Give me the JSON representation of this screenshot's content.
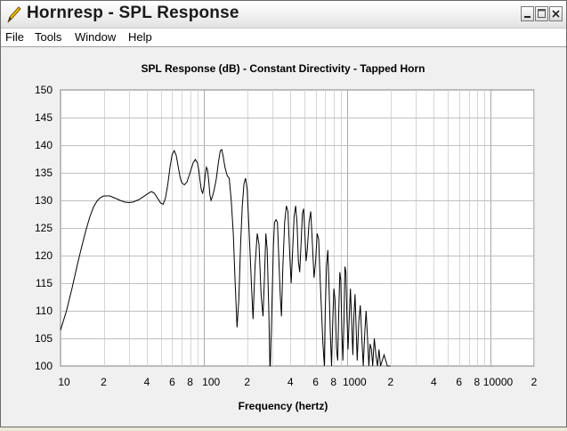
{
  "window": {
    "title": "Hornresp - SPL Response"
  },
  "menu": {
    "items": [
      "File",
      "Tools",
      "Window",
      "Help"
    ]
  },
  "colors": {
    "plot_bg": "#FFFFFF",
    "grid": "#C0C0C0",
    "trace": "#000000",
    "client_bg": "#F0F0F0"
  },
  "chart_data": {
    "type": "line",
    "title": "SPL Response (dB) - Constant Directivity - Tapped Horn",
    "xlabel": "Frequency (hertz)",
    "ylabel": "",
    "x_scale": "log",
    "xlim": [
      10,
      20000
    ],
    "ylim": [
      100,
      150
    ],
    "grid": true,
    "y_ticks": [
      100,
      105,
      110,
      115,
      120,
      125,
      130,
      135,
      140,
      145,
      150
    ],
    "x_tick_labels": [
      {
        "value": 10,
        "label": "10"
      },
      {
        "value": 20,
        "label": "2"
      },
      {
        "value": 40,
        "label": "4"
      },
      {
        "value": 60,
        "label": "6"
      },
      {
        "value": 80,
        "label": "8"
      },
      {
        "value": 100,
        "label": "100"
      },
      {
        "value": 200,
        "label": "2"
      },
      {
        "value": 400,
        "label": "4"
      },
      {
        "value": 600,
        "label": "6"
      },
      {
        "value": 800,
        "label": "8"
      },
      {
        "value": 1000,
        "label": "1000"
      },
      {
        "value": 2000,
        "label": "2"
      },
      {
        "value": 4000,
        "label": "4"
      },
      {
        "value": 6000,
        "label": "6"
      },
      {
        "value": 8000,
        "label": "8"
      },
      {
        "value": 10000,
        "label": "10000"
      },
      {
        "value": 20000,
        "label": "2"
      }
    ],
    "series": [
      {
        "points": [
          [
            10,
            106.5
          ],
          [
            11,
            110
          ],
          [
            12,
            114
          ],
          [
            13,
            118
          ],
          [
            14,
            121.5
          ],
          [
            15,
            124.5
          ],
          [
            16,
            127
          ],
          [
            17,
            128.8
          ],
          [
            18,
            129.9
          ],
          [
            19,
            130.5
          ],
          [
            20,
            130.8
          ],
          [
            22,
            130.8
          ],
          [
            24,
            130.4
          ],
          [
            26,
            130
          ],
          [
            28,
            129.7
          ],
          [
            30,
            129.6
          ],
          [
            32,
            129.7
          ],
          [
            35,
            130.1
          ],
          [
            38,
            130.7
          ],
          [
            40,
            131.1
          ],
          [
            43,
            131.6
          ],
          [
            45,
            131.3
          ],
          [
            48,
            130.2
          ],
          [
            50,
            129.5
          ],
          [
            52,
            129.3
          ],
          [
            54,
            130.5
          ],
          [
            56,
            133
          ],
          [
            58,
            136
          ],
          [
            60,
            138.3
          ],
          [
            62,
            139
          ],
          [
            64,
            138.2
          ],
          [
            66,
            136.2
          ],
          [
            68,
            134.3
          ],
          [
            70,
            133.2
          ],
          [
            73,
            132.8
          ],
          [
            76,
            133.3
          ],
          [
            80,
            135
          ],
          [
            84,
            136.8
          ],
          [
            87,
            137.4
          ],
          [
            90,
            136.8
          ],
          [
            92,
            135.5
          ],
          [
            94,
            133.5
          ],
          [
            96,
            131.8
          ],
          [
            98,
            131.3
          ],
          [
            100,
            132.5
          ],
          [
            102,
            134.5
          ],
          [
            104,
            136
          ],
          [
            106,
            135.5
          ],
          [
            108,
            133.5
          ],
          [
            110,
            131
          ],
          [
            112,
            130
          ],
          [
            115,
            130.8
          ],
          [
            118,
            132
          ],
          [
            122,
            134
          ],
          [
            126,
            136.8
          ],
          [
            130,
            139
          ],
          [
            133,
            139.2
          ],
          [
            136,
            138
          ],
          [
            140,
            136
          ],
          [
            145,
            134.5
          ],
          [
            150,
            134
          ],
          [
            155,
            130
          ],
          [
            160,
            124
          ],
          [
            165,
            115
          ],
          [
            170,
            107
          ],
          [
            175,
            112
          ],
          [
            180,
            122
          ],
          [
            185,
            129
          ],
          [
            190,
            133
          ],
          [
            195,
            134
          ],
          [
            200,
            132
          ],
          [
            205,
            126
          ],
          [
            210,
            120
          ],
          [
            215,
            114
          ],
          [
            220,
            108.5
          ],
          [
            227,
            118
          ],
          [
            235,
            124
          ],
          [
            242,
            122
          ],
          [
            250,
            113
          ],
          [
            258,
            109
          ],
          [
            264,
            116
          ],
          [
            270,
            124
          ],
          [
            276,
            121
          ],
          [
            283,
            110
          ],
          [
            288,
            100
          ],
          [
            290,
            100
          ],
          [
            295,
            107
          ],
          [
            300,
            115
          ],
          [
            305,
            122
          ],
          [
            310,
            126
          ],
          [
            318,
            126.5
          ],
          [
            325,
            126
          ],
          [
            332,
            120
          ],
          [
            340,
            113
          ],
          [
            347,
            109
          ],
          [
            355,
            118
          ],
          [
            365,
            126
          ],
          [
            375,
            129
          ],
          [
            385,
            128
          ],
          [
            395,
            121
          ],
          [
            405,
            115
          ],
          [
            415,
            121
          ],
          [
            425,
            127
          ],
          [
            435,
            129
          ],
          [
            445,
            126
          ],
          [
            455,
            119
          ],
          [
            465,
            117
          ],
          [
            475,
            122
          ],
          [
            485,
            127.5
          ],
          [
            495,
            128.5
          ],
          [
            505,
            124
          ],
          [
            515,
            119
          ],
          [
            525,
            121
          ],
          [
            540,
            126
          ],
          [
            555,
            128
          ],
          [
            570,
            122
          ],
          [
            585,
            116
          ],
          [
            600,
            119
          ],
          [
            615,
            124
          ],
          [
            630,
            123
          ],
          [
            645,
            116
          ],
          [
            660,
            110
          ],
          [
            675,
            104
          ],
          [
            690,
            100
          ],
          [
            700,
            110
          ],
          [
            715,
            118
          ],
          [
            730,
            121
          ],
          [
            745,
            114
          ],
          [
            760,
            106
          ],
          [
            775,
            100
          ],
          [
            790,
            108
          ],
          [
            805,
            114
          ],
          [
            820,
            112
          ],
          [
            840,
            103
          ],
          [
            855,
            101
          ],
          [
            870,
            110
          ],
          [
            885,
            117
          ],
          [
            900,
            115.5
          ],
          [
            915,
            106
          ],
          [
            930,
            101
          ],
          [
            945,
            108
          ],
          [
            960,
            118
          ],
          [
            975,
            117
          ],
          [
            990,
            110
          ],
          [
            1010,
            103
          ],
          [
            1030,
            109
          ],
          [
            1050,
            114
          ],
          [
            1070,
            108
          ],
          [
            1090,
            102
          ],
          [
            1110,
            109
          ],
          [
            1130,
            113
          ],
          [
            1150,
            107
          ],
          [
            1170,
            101
          ],
          [
            1200,
            108
          ],
          [
            1230,
            111
          ],
          [
            1260,
            105
          ],
          [
            1290,
            100
          ],
          [
            1320,
            106
          ],
          [
            1350,
            110
          ],
          [
            1380,
            105
          ],
          [
            1410,
            100
          ],
          [
            1440,
            104
          ],
          [
            1470,
            103
          ],
          [
            1500,
            100
          ],
          [
            1540,
            105
          ],
          [
            1580,
            102
          ],
          [
            1620,
            100
          ],
          [
            1660,
            103
          ],
          [
            1700,
            100
          ],
          [
            1800,
            102
          ],
          [
            1900,
            100
          ],
          [
            2000,
            100
          ]
        ]
      }
    ]
  }
}
